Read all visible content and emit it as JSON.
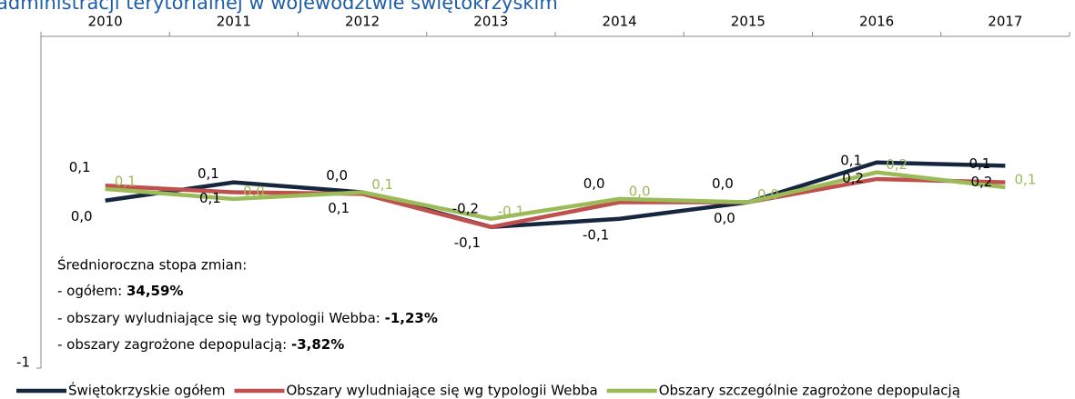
{
  "chart_data": {
    "type": "line",
    "title": "administracji terytorialnej w województwie świętokrzyskim",
    "categories": [
      "2010",
      "2011",
      "2012",
      "2013",
      "2014",
      "2015",
      "2016",
      "2017"
    ],
    "ylim": [
      -1,
      1
    ],
    "yticks": [
      -1
    ],
    "series": [
      {
        "name": "Świętokrzyskie ogółem",
        "color": "#17263f",
        "values": [
          0.01,
          0.12,
          0.06,
          -0.149,
          -0.1,
          0.0,
          0.24,
          0.22
        ],
        "value_labels": [
          "0,0",
          "0,1",
          "0,1",
          "-0,1",
          "-0,1",
          "0,0",
          "0,2",
          "0,2"
        ]
      },
      {
        "name": "Obszary wyludniające się wg typologii Webba",
        "color": "#c0504d",
        "values": [
          0.1,
          0.06,
          0.05,
          -0.15,
          0.0,
          0.0,
          0.14,
          0.12
        ],
        "value_labels": [
          "0,1",
          "0,1",
          "0,0",
          "-0,2",
          "0,0",
          "0,0",
          "0,1",
          "0,1"
        ]
      },
      {
        "name": "Obszary szczególnie zagrożone depopulacją",
        "color": "#9bbb59",
        "values": [
          0.08,
          0.02,
          0.06,
          -0.1,
          0.02,
          0.0,
          0.18,
          0.09
        ],
        "value_labels": [
          "0,1",
          "0,0",
          "0,1",
          "-0,1",
          "0,0",
          "0,0",
          "0,2",
          "0,1"
        ]
      }
    ],
    "annotation": {
      "heading": "Średnioroczna stopa zmian:",
      "lines": [
        {
          "label": "- ogółem: ",
          "value": "34,59%"
        },
        {
          "label": "- obszary wyludniające się wg typologii Webba: ",
          "value": "-1,23%"
        },
        {
          "label": "- obszary zagrożone depopulacją: ",
          "value": "-3,82%"
        }
      ]
    }
  }
}
